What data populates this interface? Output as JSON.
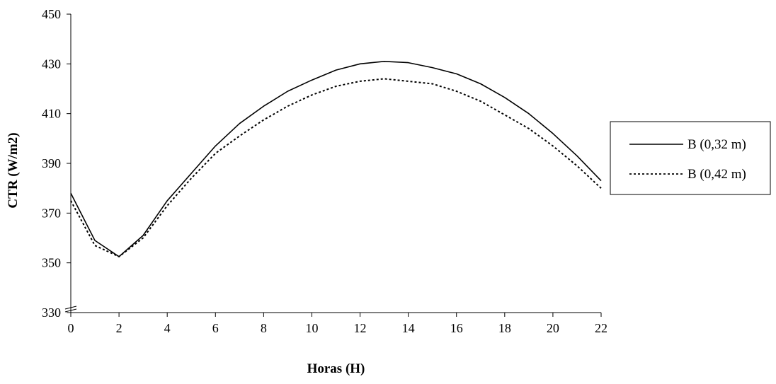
{
  "chart_data": {
    "type": "line",
    "title": "",
    "xlabel": "Horas (H)",
    "ylabel": "CTR (W/m2)",
    "xlim": [
      0,
      22
    ],
    "ylim": [
      330,
      450
    ],
    "x_ticks": [
      "0",
      "2",
      "4",
      "6",
      "8",
      "10",
      "12",
      "14",
      "16",
      "18",
      "20",
      "22"
    ],
    "y_ticks": [
      "330",
      "350",
      "370",
      "390",
      "410",
      "430",
      "450"
    ],
    "axis_break": "y-axis break near 330",
    "grid": false,
    "legend_position": "right",
    "x": [
      0,
      1,
      2,
      3,
      4,
      5,
      6,
      7,
      8,
      9,
      10,
      11,
      12,
      13,
      14,
      15,
      16,
      17,
      18,
      19,
      20,
      21,
      22
    ],
    "series": [
      {
        "name": "B (0,32 m)",
        "style": "solid",
        "color": "#000000",
        "values": [
          378,
          359,
          352.5,
          361,
          375,
          386,
          397,
          406,
          413,
          419,
          423.5,
          427.5,
          430,
          431,
          430.5,
          428.5,
          426,
          422,
          416.5,
          410,
          402,
          393,
          383
        ]
      },
      {
        "name": "B (0,42 m)",
        "style": "dotted",
        "color": "#000000",
        "values": [
          375,
          357,
          352.5,
          360,
          373,
          384,
          394,
          401,
          407.5,
          413,
          417.5,
          421,
          423,
          424,
          423,
          422,
          419,
          415,
          409.5,
          404,
          397,
          389,
          380
        ]
      }
    ]
  }
}
